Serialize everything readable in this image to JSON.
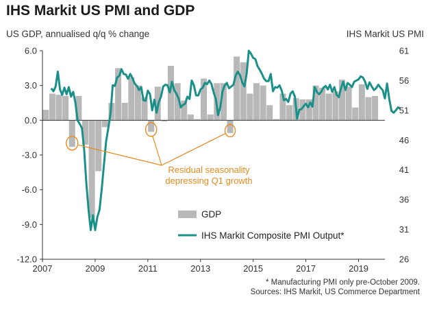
{
  "title": "IHS Markit US PMI and GDP",
  "left_axis_label": "US GDP, annualised q/q % change",
  "right_axis_label": "IHS Markit  US PMI",
  "notes": [
    "* Manufacturing PMI only pre-October 2009.",
    "Sources: IHS Markit, US Commerce Department"
  ],
  "colors": {
    "gdp": "#b8b8b8",
    "pmi": "#1a9089",
    "annotation": "#e8891c",
    "axis": "#333333"
  },
  "chart_data": {
    "type": "bar+line",
    "x_ticks": [
      "2007",
      "2009",
      "2011",
      "2013",
      "2015",
      "2017",
      "2019"
    ],
    "xlim": [
      2007.0,
      2020.0
    ],
    "y_left_ticks": [
      "6.0",
      "3.0",
      "0.0",
      "-3.0",
      "-6.0",
      "-9.0",
      "-12.0"
    ],
    "y_left_lim": [
      -12,
      6
    ],
    "y_right_ticks": [
      "61",
      "56",
      "51",
      "46",
      "41",
      "36",
      "31",
      "26"
    ],
    "y_right_lim": [
      26,
      61
    ],
    "annotation": {
      "text_lines": [
        "Residual seasonality",
        "depressing Q1 growth"
      ],
      "targets": [
        "2008 Q1",
        "2011 Q1",
        "2014 Q1"
      ]
    },
    "legend": {
      "position": "bottom-right",
      "entries": [
        "GDP",
        "IHS Markit Composite PMI Output*"
      ]
    },
    "series": [
      {
        "name": "GDP",
        "type": "bar",
        "quarter_start": 2007.0,
        "values": [
          0.9,
          2.3,
          2.2,
          2.1,
          -2.3,
          2.1,
          -2.1,
          -8.4,
          -4.4,
          -0.6,
          1.5,
          4.5,
          1.5,
          3.7,
          3.0,
          2.0,
          -1.0,
          2.9,
          -0.1,
          4.7,
          3.2,
          1.7,
          0.5,
          0.1,
          3.6,
          0.5,
          3.2,
          3.2,
          -1.1,
          5.5,
          5.0,
          2.3,
          3.2,
          3.0,
          1.3,
          0.1,
          2.3,
          1.3,
          1.9,
          1.8,
          1.8,
          3.0,
          2.8,
          2.3,
          2.5,
          3.5,
          2.9,
          1.1,
          3.1,
          2.0,
          2.1
        ]
      },
      {
        "name": "IHS Markit Composite PMI Output*",
        "type": "line",
        "x_start": 2007.3333,
        "x_step": 0.083333,
        "values": [
          54.7,
          54.2,
          55.0,
          57.5,
          54.5,
          53.6,
          54.8,
          53.7,
          54.9,
          53.3,
          54.1,
          52.3,
          49.3,
          48.7,
          48.0,
          44.4,
          38.7,
          34.3,
          30.9,
          33.4,
          30.9,
          33.1,
          34.3,
          37.8,
          41.8,
          45.8,
          48.0,
          50.4,
          55.2,
          55.1,
          56.5,
          56.8,
          57.9,
          57.1,
          57.0,
          56.3,
          57.1,
          56.4,
          55.5,
          55.1,
          54.4,
          54.9,
          52.7,
          52.6,
          54.3,
          53.7,
          51.0,
          52.8,
          50.6,
          52.4,
          53.3,
          55.0,
          55.3,
          55.2,
          54.0,
          55.8,
          54.4,
          53.8,
          53.0,
          51.5,
          51.9,
          52.1,
          53.3,
          52.9,
          56.0,
          55.2,
          53.5,
          53.5,
          54.5,
          54.8,
          55.6,
          55.4,
          56.0,
          55.4,
          54.0,
          52.9,
          50.2,
          51.5,
          54.1,
          55.2,
          55.6,
          54.7,
          55.0,
          55.3,
          56.8,
          57.5,
          56.9,
          55.7,
          55.0,
          57.1,
          61.0,
          60.5,
          59.8,
          59.6,
          58.4,
          57.8,
          57.1,
          56.3,
          55.9,
          55.9,
          57.1,
          54.2,
          54.9,
          54.8,
          55.2,
          54.3,
          52.7,
          52.9,
          52.4,
          53.8,
          54.2,
          53.3,
          49.6,
          51.1,
          51.2,
          51.7,
          52.1,
          51.5,
          52.3,
          51.6,
          54.9,
          54.1,
          53.7,
          54.1,
          54.8,
          55.1,
          54.5,
          55.3,
          54.1,
          54.9,
          53.6,
          53.2,
          54.7,
          55.8,
          54.4,
          55.6,
          55.3,
          54.9,
          55.8,
          56.0,
          56.2,
          56.7,
          56.5,
          55.8,
          54.6,
          55.7,
          55.0,
          54.4,
          54.7,
          55.3,
          54.8,
          54.4,
          53.0,
          55.5,
          52.9,
          50.9,
          50.6,
          51.0,
          51.5,
          51.3
        ]
      }
    ]
  }
}
